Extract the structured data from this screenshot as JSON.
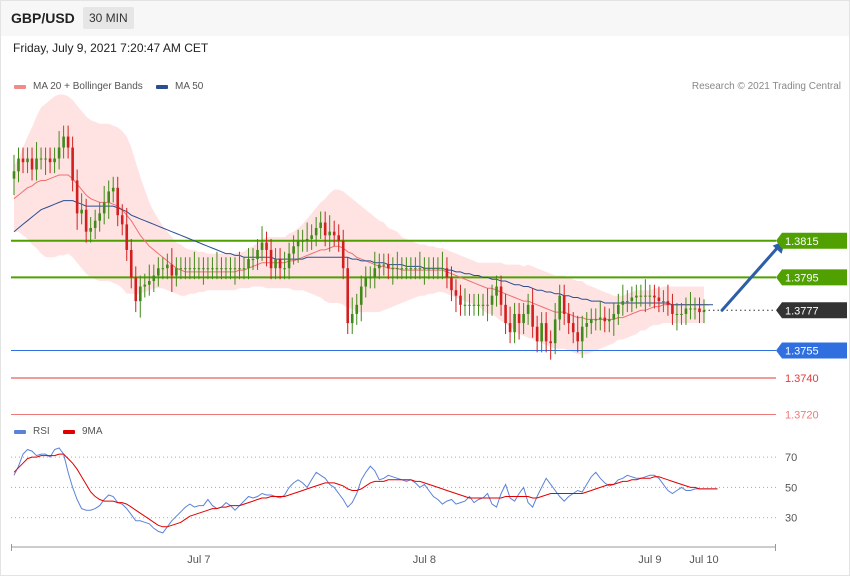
{
  "header": {
    "pair": "GBP/USD",
    "timeframe": "30 MIN",
    "datetime": "Friday, July 9, 2021 7:20:47 AM CET",
    "credit": "Research © 2021 Trading Central"
  },
  "colors": {
    "up": "#3f8a18",
    "down": "#d21f1f",
    "band_fill": "#ffd9d9",
    "ma20": "#ee7070",
    "ma50": "#2a4f8f",
    "resistance": "#4fa000",
    "support1": "#2f6fe0",
    "support2": "#e23a3a",
    "support3": "#f07a7a",
    "current": "#333333",
    "rsi": "#5b82d9",
    "rsi_ma": "#e00000",
    "arrow": "#2d5ea8"
  },
  "chart_data": [
    {
      "type": "candlestick",
      "legend": [
        {
          "name": "MA 20 + Bollinger Bands",
          "color": "#f28a8a"
        },
        {
          "name": "MA 50",
          "color": "#2a4f8f"
        }
      ],
      "x_labels": [
        "Jul 7",
        "Jul 8",
        "Jul 9",
        "Jul 10"
      ],
      "x_label_positions": [
        41,
        91,
        141,
        153
      ],
      "levels": [
        {
          "value": 1.3815,
          "label": "1.3815",
          "role": "resistance",
          "badge": true
        },
        {
          "value": 1.3795,
          "label": "1.3795",
          "role": "resistance",
          "badge": true
        },
        {
          "value": 1.3777,
          "label": "1.3777",
          "role": "current",
          "badge": true
        },
        {
          "value": 1.3755,
          "label": "1.3755",
          "role": "support1",
          "badge": true
        },
        {
          "value": 1.374,
          "label": "1.3740",
          "role": "support2",
          "badge": false
        },
        {
          "value": 1.372,
          "label": "1.3720",
          "role": "support3",
          "badge": false
        }
      ],
      "ylim": [
        1.3717,
        1.3892
      ],
      "forecast_arrow": {
        "from": [
          157,
          1.3777
        ],
        "to": [
          171,
          1.3815
        ]
      },
      "close": [
        1.3853,
        1.386,
        1.3858,
        1.386,
        1.3854,
        1.386,
        1.386,
        1.386,
        1.3858,
        1.386,
        1.3866,
        1.3872,
        1.3866,
        1.3848,
        1.383,
        1.3832,
        1.382,
        1.3822,
        1.3826,
        1.383,
        1.3836,
        1.3842,
        1.3844,
        1.3829,
        1.3824,
        1.381,
        1.3795,
        1.3782,
        1.379,
        1.3791,
        1.3793,
        1.3796,
        1.38,
        1.38,
        1.3802,
        1.3796,
        1.38,
        1.38,
        1.38,
        1.38,
        1.38,
        1.38,
        1.38,
        1.38,
        1.38,
        1.38,
        1.38,
        1.38,
        1.38,
        1.38,
        1.38,
        1.38,
        1.3805,
        1.3805,
        1.381,
        1.3814,
        1.381,
        1.38,
        1.3805,
        1.38,
        1.38,
        1.3808,
        1.3812,
        1.3815,
        1.3815,
        1.3816,
        1.3818,
        1.3822,
        1.3825,
        1.3818,
        1.382,
        1.3818,
        1.3815,
        1.38,
        1.377,
        1.3775,
        1.378,
        1.379,
        1.3795,
        1.3795,
        1.38,
        1.3802,
        1.3802,
        1.38,
        1.38,
        1.38,
        1.38,
        1.38,
        1.38,
        1.38,
        1.38,
        1.38,
        1.38,
        1.38,
        1.38,
        1.38,
        1.3795,
        1.3788,
        1.3785,
        1.378,
        1.378,
        1.378,
        1.378,
        1.378,
        1.378,
        1.378,
        1.3785,
        1.379,
        1.378,
        1.377,
        1.3765,
        1.3775,
        1.377,
        1.3775,
        1.378,
        1.3768,
        1.376,
        1.377,
        1.376,
        1.3759,
        1.3772,
        1.3785,
        1.3775,
        1.377,
        1.3765,
        1.376,
        1.3768,
        1.377,
        1.3772,
        1.3772,
        1.3773,
        1.3771,
        1.3772,
        1.3775,
        1.378,
        1.3782,
        1.3782,
        1.3784,
        1.3785,
        1.3785,
        1.3785,
        1.3785,
        1.3784,
        1.3782,
        1.3782,
        1.378,
        1.3775,
        1.3775,
        1.3775,
        1.3778,
        1.3778,
        1.3778,
        1.3776,
        1.3777
      ],
      "ma20": [
        1.3838,
        1.384,
        1.3842,
        1.3844,
        1.3845,
        1.3847,
        1.3848,
        1.3848,
        1.3849,
        1.385,
        1.3851,
        1.3851,
        1.3851,
        1.3849,
        1.3846,
        1.3843,
        1.384,
        1.3838,
        1.3837,
        1.3836,
        1.3836,
        1.3836,
        1.3835,
        1.3834,
        1.3832,
        1.3829,
        1.3826,
        1.3822,
        1.3818,
        1.3815,
        1.3812,
        1.381,
        1.3808,
        1.3806,
        1.3804,
        1.3802,
        1.38,
        1.3799,
        1.3798,
        1.3798,
        1.3798,
        1.3798,
        1.3798,
        1.3798,
        1.3798,
        1.3798,
        1.3798,
        1.3798,
        1.3798,
        1.3798,
        1.3799,
        1.3799,
        1.38,
        1.3801,
        1.3802,
        1.3803,
        1.3803,
        1.3803,
        1.3803,
        1.3803,
        1.3803,
        1.3804,
        1.3804,
        1.3805,
        1.3806,
        1.3807,
        1.3808,
        1.3809,
        1.381,
        1.381,
        1.3811,
        1.3812,
        1.3812,
        1.3811,
        1.3809,
        1.3808,
        1.3806,
        1.3805,
        1.3804,
        1.3803,
        1.3802,
        1.3801,
        1.3801,
        1.38,
        1.38,
        1.38,
        1.3799,
        1.3799,
        1.3799,
        1.3799,
        1.3799,
        1.3799,
        1.3799,
        1.3799,
        1.3799,
        1.3799,
        1.3798,
        1.3797,
        1.3796,
        1.3795,
        1.3794,
        1.3793,
        1.3792,
        1.3791,
        1.379,
        1.3789,
        1.3789,
        1.3788,
        1.3787,
        1.3786,
        1.3785,
        1.3784,
        1.3783,
        1.3782,
        1.3782,
        1.3781,
        1.378,
        1.3779,
        1.3778,
        1.3777,
        1.3776,
        1.3776,
        1.3776,
        1.3775,
        1.3774,
        1.3773,
        1.3773,
        1.3772,
        1.3772,
        1.3772,
        1.3772,
        1.3772,
        1.3772,
        1.3772,
        1.3773,
        1.3773,
        1.3774,
        1.3775,
        1.3776,
        1.3777,
        1.3777,
        1.3778,
        1.3779,
        1.3779,
        1.378,
        1.378,
        1.378,
        1.378,
        1.378,
        1.378,
        1.378,
        1.378,
        1.378,
        1.378,
        1.378
      ],
      "ma50": [
        1.382,
        1.3822,
        1.3824,
        1.3826,
        1.3828,
        1.383,
        1.3832,
        1.3833,
        1.3834,
        1.3835,
        1.3836,
        1.3837,
        1.3837,
        1.3837,
        1.3836,
        1.3835,
        1.3834,
        1.3834,
        1.3834,
        1.3834,
        1.3834,
        1.3834,
        1.3834,
        1.3833,
        1.3832,
        1.3831,
        1.3829,
        1.3828,
        1.3827,
        1.3826,
        1.3825,
        1.3824,
        1.3823,
        1.3822,
        1.3821,
        1.382,
        1.3819,
        1.3818,
        1.3817,
        1.3816,
        1.3815,
        1.3814,
        1.3813,
        1.3812,
        1.3811,
        1.381,
        1.3809,
        1.3808,
        1.3808,
        1.3807,
        1.3807,
        1.3806,
        1.3806,
        1.3806,
        1.3806,
        1.3806,
        1.3806,
        1.3806,
        1.3805,
        1.3805,
        1.3805,
        1.3805,
        1.3805,
        1.3805,
        1.3805,
        1.3806,
        1.3806,
        1.3806,
        1.3806,
        1.3806,
        1.3806,
        1.3806,
        1.3806,
        1.3806,
        1.3806,
        1.3805,
        1.3805,
        1.3804,
        1.3804,
        1.3804,
        1.3803,
        1.3803,
        1.3803,
        1.3802,
        1.3802,
        1.3802,
        1.3802,
        1.3801,
        1.3801,
        1.3801,
        1.3801,
        1.38,
        1.38,
        1.38,
        1.38,
        1.38,
        1.3799,
        1.3799,
        1.3798,
        1.3798,
        1.3797,
        1.3797,
        1.3796,
        1.3796,
        1.3795,
        1.3795,
        1.3794,
        1.3794,
        1.3793,
        1.3793,
        1.3792,
        1.3791,
        1.3791,
        1.379,
        1.379,
        1.3789,
        1.3788,
        1.3788,
        1.3787,
        1.3787,
        1.3786,
        1.3786,
        1.3785,
        1.3785,
        1.3784,
        1.3784,
        1.3783,
        1.3783,
        1.3782,
        1.3782,
        1.3782,
        1.3781,
        1.3781,
        1.3781,
        1.3781,
        1.3781,
        1.3781,
        1.3781,
        1.3781,
        1.3781,
        1.3781,
        1.3781,
        1.3781,
        1.3781,
        1.3781,
        1.3781,
        1.378,
        1.378,
        1.378,
        1.378,
        1.378,
        1.378,
        1.378,
        1.378,
        1.378,
        1.378
      ],
      "band_width": [
        0.0018,
        0.002,
        0.0024,
        0.0028,
        0.0032,
        0.0036,
        0.004,
        0.0042,
        0.0043,
        0.0044,
        0.0044,
        0.0044,
        0.0043,
        0.0043,
        0.0043,
        0.0043,
        0.0043,
        0.0043,
        0.0043,
        0.0043,
        0.0043,
        0.0043,
        0.0043,
        0.0043,
        0.0043,
        0.0043,
        0.004,
        0.0036,
        0.0032,
        0.0028,
        0.0024,
        0.0021,
        0.0019,
        0.0017,
        0.0016,
        0.0015,
        0.0014,
        0.0014,
        0.0013,
        0.0012,
        0.0012,
        0.0011,
        0.0011,
        0.001,
        0.001,
        0.001,
        0.001,
        0.001,
        0.001,
        0.001,
        0.001,
        0.001,
        0.0011,
        0.0011,
        0.0012,
        0.0013,
        0.0014,
        0.0014,
        0.0014,
        0.0014,
        0.0014,
        0.0015,
        0.0016,
        0.0017,
        0.0018,
        0.002,
        0.0022,
        0.0024,
        0.0026,
        0.0028,
        0.003,
        0.0031,
        0.0031,
        0.0031,
        0.0031,
        0.003,
        0.003,
        0.0029,
        0.0028,
        0.0027,
        0.0026,
        0.0025,
        0.0024,
        0.0022,
        0.0021,
        0.002,
        0.0018,
        0.0017,
        0.0016,
        0.0015,
        0.0014,
        0.0014,
        0.0013,
        0.0013,
        0.0012,
        0.0012,
        0.0012,
        0.0012,
        0.0012,
        0.0012,
        0.0012,
        0.0012,
        0.0012,
        0.0012,
        0.0013,
        0.0014,
        0.0014,
        0.0015,
        0.0016,
        0.0016,
        0.0017,
        0.0018,
        0.0019,
        0.0019,
        0.002,
        0.002,
        0.002,
        0.002,
        0.002,
        0.002,
        0.002,
        0.002,
        0.002,
        0.002,
        0.002,
        0.002,
        0.002,
        0.0019,
        0.0018,
        0.0017,
        0.0016,
        0.0015,
        0.0014,
        0.0013,
        0.0012,
        0.0012,
        0.0012,
        0.0012,
        0.0012,
        0.0011,
        0.0011,
        0.001,
        0.001,
        0.001,
        0.001,
        0.001,
        0.001,
        0.001,
        0.001,
        0.001,
        0.001,
        0.001,
        0.001,
        0.001,
        0.001,
        0.001,
        0.001
      ]
    },
    {
      "type": "line",
      "legend": [
        {
          "name": "RSI",
          "color": "#5b82d9"
        },
        {
          "name": "9MA",
          "color": "#e00000"
        }
      ],
      "y_ticks": [
        70,
        50,
        30
      ],
      "ylim": [
        12,
        78
      ],
      "series": [
        {
          "name": "RSI",
          "values": [
            58,
            64,
            72,
            75,
            74,
            71,
            72,
            72,
            70,
            75,
            76,
            72,
            60,
            50,
            42,
            36,
            35,
            35,
            36,
            38,
            42,
            45,
            44,
            40,
            39,
            36,
            32,
            28,
            28,
            27,
            26,
            23,
            21,
            20,
            24,
            28,
            31,
            34,
            37,
            39,
            37,
            38,
            38,
            42,
            38,
            36,
            37,
            40,
            38,
            35,
            38,
            41,
            44,
            43,
            44,
            46,
            45,
            45,
            44,
            43,
            45,
            50,
            53,
            55,
            53,
            50,
            55,
            60,
            58,
            56,
            52,
            50,
            46,
            42,
            37,
            40,
            46,
            55,
            60,
            64,
            61,
            55,
            56,
            58,
            57,
            56,
            55,
            54,
            55,
            53,
            50,
            52,
            48,
            44,
            42,
            39,
            41,
            42,
            39,
            40,
            41,
            44,
            40,
            42,
            43,
            46,
            39,
            37,
            46,
            52,
            43,
            41,
            46,
            50,
            40,
            37,
            44,
            50,
            56,
            52,
            48,
            44,
            41,
            44,
            46,
            48,
            47,
            52,
            57,
            60,
            56,
            53,
            51,
            52,
            55,
            56,
            58,
            57,
            56,
            56,
            57,
            58,
            58,
            56,
            52,
            48,
            46,
            48,
            50,
            48,
            48,
            49,
            49,
            49,
            49,
            49,
            49
          ]
        },
        {
          "name": "9MA",
          "values": [
            60,
            63,
            66,
            69,
            70,
            70,
            71,
            71,
            71,
            71,
            72,
            72,
            69,
            66,
            62,
            57,
            52,
            47,
            44,
            42,
            41,
            41,
            41,
            40,
            40,
            39,
            37,
            35,
            33,
            31,
            29,
            27,
            25,
            24,
            24,
            25,
            26,
            27,
            29,
            31,
            32,
            33,
            34,
            35,
            36,
            36,
            37,
            37,
            38,
            38,
            38,
            39,
            40,
            41,
            42,
            43,
            43,
            44,
            44,
            44,
            44,
            45,
            46,
            47,
            48,
            49,
            50,
            51,
            52,
            53,
            53,
            53,
            52,
            51,
            49,
            48,
            48,
            49,
            51,
            53,
            54,
            54,
            54,
            55,
            55,
            55,
            55,
            55,
            55,
            54,
            54,
            53,
            52,
            51,
            50,
            49,
            48,
            47,
            46,
            45,
            44,
            43,
            43,
            43,
            43,
            43,
            43,
            43,
            43,
            44,
            44,
            44,
            44,
            44,
            44,
            43,
            43,
            44,
            45,
            46,
            46,
            46,
            46,
            46,
            46,
            46,
            46,
            47,
            48,
            49,
            50,
            51,
            52,
            52,
            53,
            54,
            54,
            55,
            55,
            56,
            56,
            56,
            57,
            57,
            56,
            55,
            54,
            53,
            52,
            51,
            50,
            50,
            49,
            49,
            49,
            49,
            49
          ]
        }
      ]
    }
  ]
}
